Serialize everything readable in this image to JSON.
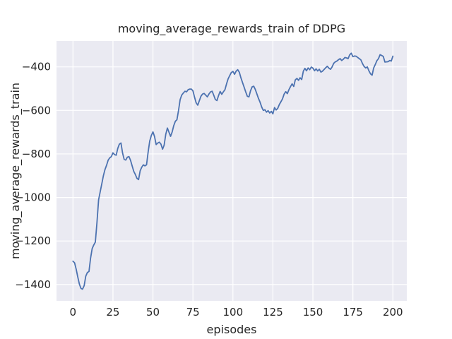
{
  "chart_data": {
    "type": "line",
    "title": "moving_average_rewards_train of DDPG",
    "xlabel": "episodes",
    "ylabel": "moving_average_rewards_train",
    "legend": false,
    "grid": true,
    "x_start": 0,
    "x_step": 1,
    "values": [
      -1293,
      -1300,
      -1330,
      -1365,
      -1398,
      -1418,
      -1421,
      -1405,
      -1362,
      -1345,
      -1340,
      -1280,
      -1235,
      -1218,
      -1205,
      -1115,
      -1011,
      -975,
      -938,
      -900,
      -872,
      -852,
      -828,
      -818,
      -812,
      -795,
      -803,
      -806,
      -775,
      -755,
      -750,
      -795,
      -825,
      -828,
      -815,
      -812,
      -830,
      -855,
      -880,
      -895,
      -912,
      -918,
      -877,
      -861,
      -850,
      -855,
      -850,
      -790,
      -741,
      -715,
      -699,
      -720,
      -757,
      -750,
      -746,
      -755,
      -778,
      -760,
      -710,
      -681,
      -700,
      -719,
      -700,
      -670,
      -650,
      -643,
      -600,
      -550,
      -530,
      -520,
      -512,
      -515,
      -505,
      -502,
      -502,
      -510,
      -540,
      -565,
      -576,
      -555,
      -535,
      -525,
      -522,
      -530,
      -538,
      -525,
      -515,
      -512,
      -530,
      -550,
      -555,
      -532,
      -513,
      -526,
      -515,
      -505,
      -478,
      -455,
      -440,
      -426,
      -421,
      -434,
      -420,
      -413,
      -425,
      -450,
      -472,
      -494,
      -515,
      -535,
      -538,
      -510,
      -492,
      -489,
      -504,
      -525,
      -545,
      -563,
      -585,
      -600,
      -597,
      -608,
      -601,
      -612,
      -604,
      -616,
      -587,
      -598,
      -591,
      -573,
      -560,
      -547,
      -525,
      -514,
      -523,
      -505,
      -491,
      -478,
      -490,
      -460,
      -453,
      -462,
      -450,
      -458,
      -420,
      -407,
      -418,
      -405,
      -413,
      -401,
      -406,
      -418,
      -409,
      -419,
      -411,
      -424,
      -420,
      -412,
      -404,
      -397,
      -406,
      -411,
      -400,
      -384,
      -377,
      -373,
      -367,
      -362,
      -371,
      -365,
      -357,
      -359,
      -362,
      -345,
      -337,
      -353,
      -350,
      -351,
      -357,
      -362,
      -368,
      -385,
      -398,
      -405,
      -400,
      -418,
      -432,
      -438,
      -405,
      -389,
      -372,
      -362,
      -344,
      -348,
      -352,
      -378,
      -377,
      -376,
      -371,
      -373,
      -351
    ],
    "xticks": [
      0,
      25,
      50,
      75,
      100,
      125,
      150,
      175,
      200
    ],
    "xtick_labels": [
      "0",
      "25",
      "50",
      "75",
      "100",
      "125",
      "150",
      "175",
      "200"
    ],
    "yticks": [
      -400,
      -600,
      -800,
      -1000,
      -1200,
      -1400
    ],
    "ytick_labels": [
      "−400",
      "−600",
      "−800",
      "−1000",
      "−1200",
      "−1400"
    ],
    "xlim": [
      -10.3,
      208.7
    ],
    "ylim": [
      -1475,
      -281
    ],
    "colors": {
      "line": "#4C72B0",
      "plot_bg": "#EAEAF2",
      "grid": "#FFFFFF",
      "text": "#262626",
      "figure_bg": "#FFFFFF"
    }
  }
}
